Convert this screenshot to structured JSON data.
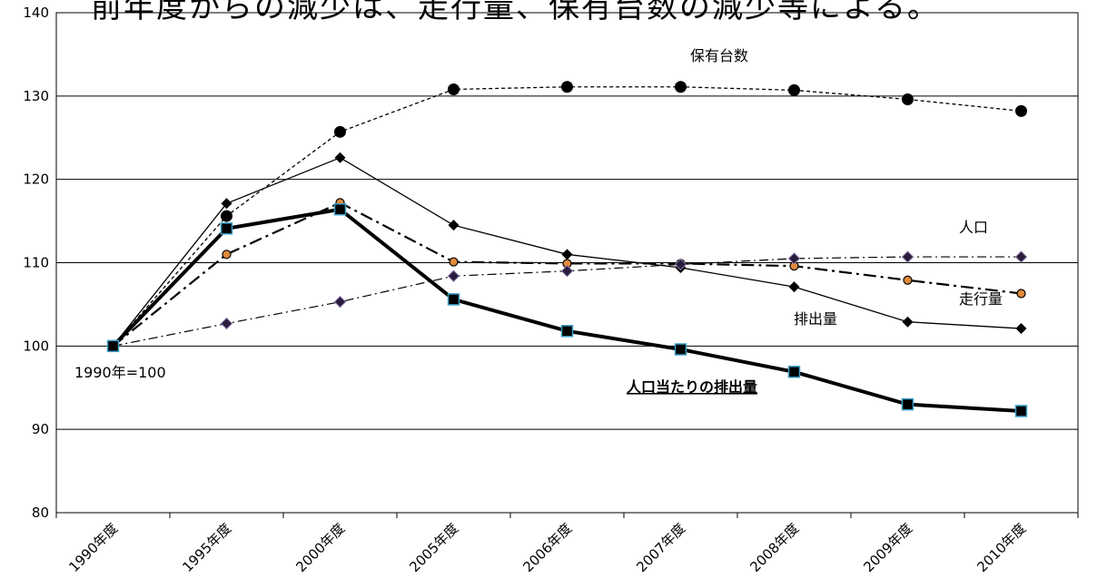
{
  "caption": "前年度からの減少は、走行量、保有台数の減少等による。",
  "chart_data": {
    "type": "line",
    "categories": [
      "1990年度",
      "1995年度",
      "2000年度",
      "2005年度",
      "2006年度",
      "2007年度",
      "2008年度",
      "2009年度",
      "2010年度"
    ],
    "ylim": [
      80,
      140
    ],
    "yticks": [
      80,
      90,
      100,
      110,
      120,
      130,
      140
    ],
    "grid": true,
    "base_note": "1990年=100",
    "series": [
      {
        "name": "保有台数",
        "values": [
          100,
          115.6,
          125.7,
          130.8,
          131.1,
          131.1,
          130.7,
          129.6,
          128.2
        ]
      },
      {
        "name": "排出量",
        "values": [
          100,
          117.1,
          122.6,
          114.5,
          111.0,
          109.4,
          107.1,
          102.9,
          102.1
        ]
      },
      {
        "name": "走行量",
        "values": [
          100,
          111.0,
          117.2,
          110.1,
          109.9,
          109.9,
          109.6,
          107.9,
          106.3
        ]
      },
      {
        "name": "人口",
        "values": [
          100,
          102.7,
          105.3,
          108.4,
          109.0,
          109.8,
          110.5,
          110.7,
          110.7
        ]
      },
      {
        "name": "人口当たりの排出量",
        "values": [
          100,
          114.1,
          116.4,
          105.6,
          101.8,
          99.6,
          96.9,
          93.0,
          92.2
        ]
      }
    ],
    "colors": {
      "axis": "#000000",
      "grid": "#000000",
      "marker_fill": "#000000",
      "orange_dot": "#e08a3c",
      "diamond_fill": "#2a1c3c",
      "square_edge": "#3aa0c8"
    }
  }
}
